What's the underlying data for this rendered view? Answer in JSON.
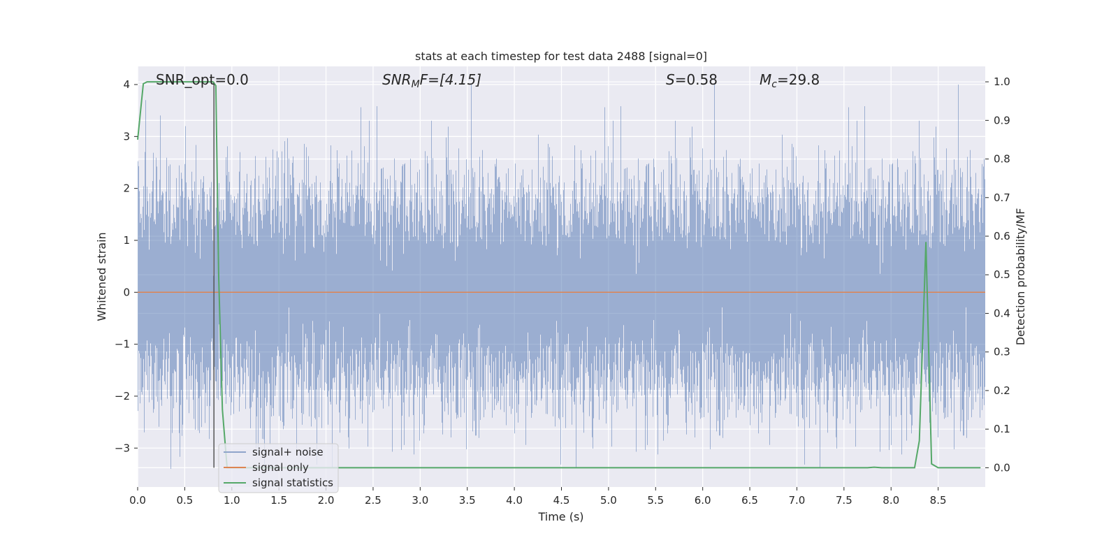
{
  "chart_data": {
    "type": "line",
    "title": "stats at each timestep for test data 2488 [signal=0]",
    "xlabel": "Time (s)",
    "ylabel_left": "Whitened strain",
    "ylabel_right": "Detection probability/MF",
    "xlim": [
      0.0,
      9.0
    ],
    "ylim_left": [
      -3.75,
      4.35
    ],
    "ylim_right": [
      -0.05,
      1.04
    ],
    "x_ticks": [
      "0.0",
      "0.5",
      "1.0",
      "1.5",
      "2.0",
      "2.5",
      "3.0",
      "3.5",
      "4.0",
      "4.5",
      "5.0",
      "5.5",
      "6.0",
      "6.5",
      "7.0",
      "7.5",
      "8.0",
      "8.5"
    ],
    "y_ticks_left": [
      "−3",
      "−2",
      "−1",
      "0",
      "1",
      "2",
      "3",
      "4"
    ],
    "y_ticks_right": [
      "0.0",
      "0.1",
      "0.2",
      "0.3",
      "0.4",
      "0.5",
      "0.6",
      "0.7",
      "0.8",
      "0.9",
      "1.0"
    ],
    "grid": true,
    "legend_position": "lower-left",
    "annotations": {
      "snr_opt": "SNR_opt=0.0",
      "snr_mf_main": "SNR",
      "snr_mf_sub": "M",
      "snr_mf_rest": "F=[4.15]",
      "s_var": "S",
      "s_val": "=0.58",
      "mc_var": "M",
      "mc_sub": "c",
      "mc_val": "=29.8",
      "marker_time": 0.81
    },
    "colors": {
      "background": "#eaeaf2",
      "grid": "#ffffff",
      "noise": "#4c72b0",
      "signal": "#dd8452",
      "statistics": "#55a868",
      "marker": "#555555"
    },
    "series": [
      {
        "name": "signal+ noise",
        "axis": "left",
        "style": "noise",
        "sample_rate_hz": 2048,
        "envelope_min": -3.4,
        "envelope_max": 4.0,
        "sigma": 1.0
      },
      {
        "name": "signal only",
        "axis": "left",
        "x": [
          0.0,
          9.0
        ],
        "y": [
          0.0,
          0.0
        ]
      },
      {
        "name": "signal statistics",
        "axis": "right",
        "x": [
          0.0,
          0.06,
          0.1,
          0.2,
          0.4,
          0.6,
          0.75,
          0.8,
          0.83,
          0.86,
          0.9,
          0.95,
          1.0,
          1.5,
          2.0,
          3.0,
          4.0,
          5.0,
          6.0,
          7.0,
          7.5,
          7.75,
          7.82,
          7.9,
          8.0,
          8.1,
          8.2,
          8.25,
          8.3,
          8.37,
          8.43,
          8.5,
          8.6,
          8.75,
          8.95
        ],
        "y": [
          0.85,
          0.995,
          1.0,
          1.0,
          1.0,
          1.0,
          1.0,
          1.0,
          0.99,
          0.5,
          0.15,
          0.0,
          0.0,
          0.0,
          0.0,
          0.0,
          0.0,
          0.0,
          0.0,
          0.0,
          0.0,
          0.0,
          0.0015,
          0.0,
          0.0,
          0.0,
          0.0,
          0.0,
          0.07,
          0.585,
          0.01,
          0.0,
          0.0,
          0.0,
          0.0
        ]
      }
    ]
  }
}
